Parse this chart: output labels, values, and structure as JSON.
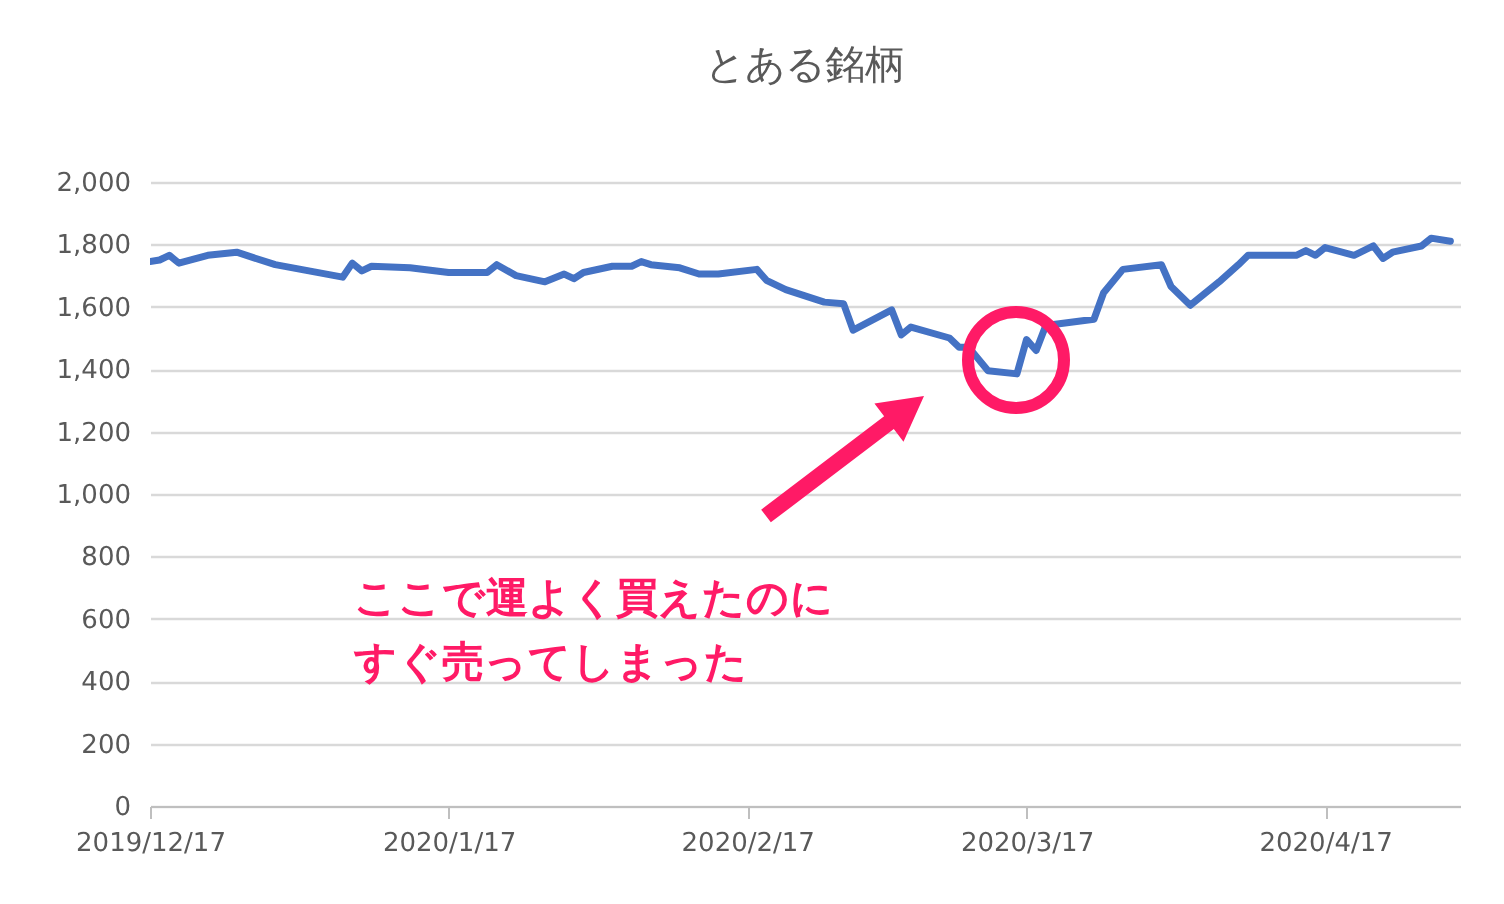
{
  "chart_data": {
    "type": "line",
    "title": "とある銘柄",
    "x": [
      "2019-12-17",
      "2019-12-18",
      "2019-12-19",
      "2019-12-20",
      "2019-12-23",
      "2019-12-26",
      "2019-12-30",
      "2020-01-06",
      "2020-01-07",
      "2020-01-08",
      "2020-01-09",
      "2020-01-13",
      "2020-01-17",
      "2020-01-21",
      "2020-01-22",
      "2020-01-24",
      "2020-01-27",
      "2020-01-29",
      "2020-01-30",
      "2020-01-31",
      "2020-02-03",
      "2020-02-05",
      "2020-02-06",
      "2020-02-07",
      "2020-02-10",
      "2020-02-12",
      "2020-02-14",
      "2020-02-18",
      "2020-02-19",
      "2020-02-21",
      "2020-02-25",
      "2020-02-27",
      "2020-02-28",
      "2020-03-03",
      "2020-03-04",
      "2020-03-05",
      "2020-03-09",
      "2020-03-10",
      "2020-03-11",
      "2020-03-13",
      "2020-03-16",
      "2020-03-17",
      "2020-03-18",
      "2020-03-19",
      "2020-03-24",
      "2020-03-25",
      "2020-03-27",
      "2020-03-31",
      "2020-04-01",
      "2020-04-03",
      "2020-04-06",
      "2020-04-08",
      "2020-04-09",
      "2020-04-14",
      "2020-04-15",
      "2020-04-16",
      "2020-04-17",
      "2020-04-20",
      "2020-04-22",
      "2020-04-23",
      "2020-04-24",
      "2020-04-27",
      "2020-04-28",
      "2020-04-30"
    ],
    "series": [
      {
        "color": "#4472c4",
        "values": [
          1745,
          1750,
          1765,
          1740,
          1765,
          1775,
          1735,
          1695,
          1740,
          1715,
          1730,
          1725,
          1710,
          1710,
          1735,
          1700,
          1680,
          1705,
          1690,
          1710,
          1730,
          1730,
          1745,
          1735,
          1725,
          1705,
          1705,
          1720,
          1685,
          1655,
          1615,
          1610,
          1525,
          1590,
          1510,
          1535,
          1500,
          1470,
          1470,
          1395,
          1385,
          1495,
          1460,
          1540,
          1560,
          1645,
          1720,
          1735,
          1665,
          1605,
          1680,
          1735,
          1765,
          1765,
          1780,
          1765,
          1790,
          1765,
          1795,
          1755,
          1775,
          1795,
          1820,
          1810
        ]
      }
    ],
    "xlim": [
      "2019-12-17",
      "2020-05-01"
    ],
    "xticks": [
      {
        "value": "2019-12-17",
        "label": "2019/12/17"
      },
      {
        "value": "2020-01-17",
        "label": "2020/1/17"
      },
      {
        "value": "2020-02-17",
        "label": "2020/2/17"
      },
      {
        "value": "2020-03-17",
        "label": "2020/3/17"
      },
      {
        "value": "2020-04-17",
        "label": "2020/4/17"
      }
    ],
    "ylim": [
      0,
      2000
    ],
    "yticks": [
      {
        "value": 0,
        "label": "0"
      },
      {
        "value": 200,
        "label": "200"
      },
      {
        "value": 400,
        "label": "400"
      },
      {
        "value": 600,
        "label": "600"
      },
      {
        "value": 800,
        "label": "800"
      },
      {
        "value": 1000,
        "label": "1,000"
      },
      {
        "value": 1200,
        "label": "1,200"
      },
      {
        "value": 1400,
        "label": "1,400"
      },
      {
        "value": 1600,
        "label": "1,600"
      },
      {
        "value": 1800,
        "label": "1,800"
      },
      {
        "value": 2000,
        "label": "2,000"
      }
    ],
    "grid": "y",
    "marker": "none",
    "line_style": "solid",
    "annotations": [
      "ここで運よく買えたのにすぐ売ってしまった"
    ]
  }
}
